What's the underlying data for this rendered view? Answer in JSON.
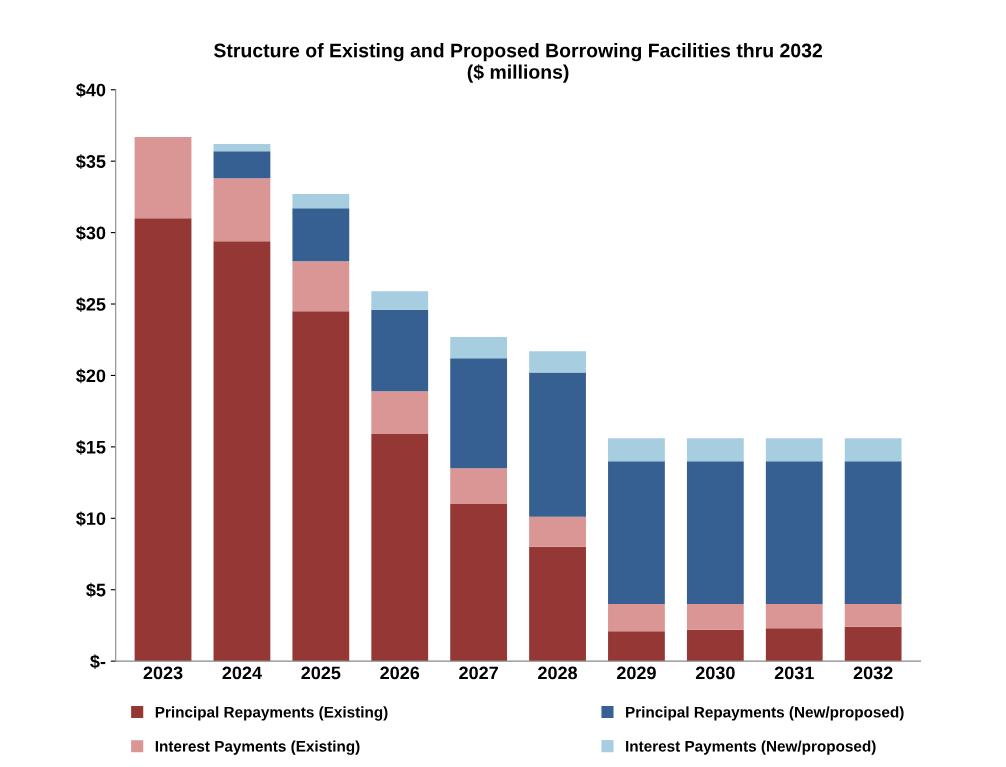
{
  "chart_data": {
    "type": "bar",
    "title": "Structure of Existing and Proposed Borrowing Facilities thru 2032\n($ millions)",
    "categories": [
      "2023",
      "2024",
      "2025",
      "2026",
      "2027",
      "2028",
      "2029",
      "2030",
      "2031",
      "2032"
    ],
    "stacked": true,
    "series": [
      {
        "name": "Principal Repayments (Existing)",
        "color": "#953735",
        "values": [
          31.0,
          29.4,
          24.5,
          15.9,
          11.0,
          8.0,
          2.1,
          2.2,
          2.3,
          2.4
        ]
      },
      {
        "name": "Interest Payments (Existing)",
        "color": "#d99694",
        "values": [
          5.7,
          4.4,
          3.5,
          3.0,
          2.5,
          2.1,
          1.9,
          1.8,
          1.7,
          1.6
        ]
      },
      {
        "name": "Principal Repayments (New/proposed)",
        "color": "#376092",
        "values": [
          null,
          1.9,
          3.7,
          5.7,
          7.7,
          10.1,
          10.0,
          10.0,
          10.0,
          10.0
        ]
      },
      {
        "name": "Interest Payments (New/proposed)",
        "color": "#a7cde0",
        "values": [
          null,
          0.5,
          1.0,
          1.3,
          1.5,
          1.5,
          1.6,
          1.6,
          1.6,
          1.6
        ]
      }
    ],
    "ylim": [
      0,
      40
    ],
    "yticks": [
      {
        "value": 0,
        "label": "$-"
      },
      {
        "value": 5,
        "label": "$5"
      },
      {
        "value": 10,
        "label": "$10"
      },
      {
        "value": 15,
        "label": "$15"
      },
      {
        "value": 20,
        "label": "$20"
      },
      {
        "value": 25,
        "label": "$25"
      },
      {
        "value": 30,
        "label": "$30"
      },
      {
        "value": 35,
        "label": "$35"
      },
      {
        "value": 40,
        "label": "$40"
      }
    ],
    "grid": false,
    "legend": "bottom"
  }
}
